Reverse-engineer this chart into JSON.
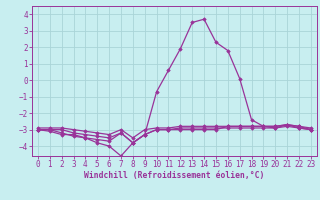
{
  "xlabel": "Windchill (Refroidissement éolien,°C)",
  "background_color": "#c8eef0",
  "grid_color": "#aad4d8",
  "line_color": "#993399",
  "xlim": [
    -0.5,
    23.5
  ],
  "ylim": [
    -4.6,
    4.5
  ],
  "yticks": [
    -4,
    -3,
    -2,
    -1,
    0,
    1,
    2,
    3,
    4
  ],
  "xticks": [
    0,
    1,
    2,
    3,
    4,
    5,
    6,
    7,
    8,
    9,
    10,
    11,
    12,
    13,
    14,
    15,
    16,
    17,
    18,
    19,
    20,
    21,
    22,
    23
  ],
  "series": [
    {
      "x": [
        0,
        1,
        2,
        3,
        4,
        5,
        6,
        7,
        8,
        9,
        10,
        11,
        12,
        13,
        14,
        15,
        16,
        17,
        18,
        19,
        20,
        21,
        22,
        23
      ],
      "y": [
        -3.0,
        -3.1,
        -3.3,
        -3.3,
        -3.5,
        -3.8,
        -4.0,
        -4.6,
        -3.8,
        -3.3,
        -0.7,
        0.6,
        1.9,
        3.5,
        3.7,
        2.3,
        1.8,
        0.1,
        -2.4,
        -2.8,
        -2.9,
        -2.7,
        -2.9,
        -3.0
      ]
    },
    {
      "x": [
        0,
        1,
        2,
        3,
        4,
        5,
        6,
        7,
        8,
        9,
        10,
        11,
        12,
        13,
        14,
        15,
        16,
        17,
        18,
        19,
        20,
        21,
        22,
        23
      ],
      "y": [
        -3.0,
        -3.0,
        -3.2,
        -3.4,
        -3.5,
        -3.6,
        -3.7,
        -3.2,
        -3.8,
        -3.3,
        -3.0,
        -3.0,
        -3.0,
        -3.0,
        -3.0,
        -3.0,
        -2.8,
        -2.8,
        -2.8,
        -2.8,
        -2.8,
        -2.7,
        -2.8,
        -3.0
      ]
    },
    {
      "x": [
        0,
        1,
        2,
        3,
        4,
        5,
        6,
        7,
        8,
        9,
        10,
        11,
        12,
        13,
        14,
        15,
        16,
        17,
        18,
        19,
        20,
        21,
        22,
        23
      ],
      "y": [
        -3.0,
        -3.0,
        -3.0,
        -3.2,
        -3.3,
        -3.4,
        -3.5,
        -3.2,
        -3.8,
        -3.3,
        -3.0,
        -3.0,
        -2.9,
        -2.9,
        -2.9,
        -2.9,
        -2.9,
        -2.9,
        -2.9,
        -2.9,
        -2.9,
        -2.8,
        -2.9,
        -3.0
      ]
    },
    {
      "x": [
        0,
        1,
        2,
        3,
        4,
        5,
        6,
        7,
        8,
        9,
        10,
        11,
        12,
        13,
        14,
        15,
        16,
        17,
        18,
        19,
        20,
        21,
        22,
        23
      ],
      "y": [
        -2.9,
        -2.9,
        -2.9,
        -3.0,
        -3.1,
        -3.2,
        -3.3,
        -3.0,
        -3.5,
        -3.0,
        -2.9,
        -2.9,
        -2.8,
        -2.8,
        -2.8,
        -2.8,
        -2.8,
        -2.8,
        -2.8,
        -2.8,
        -2.8,
        -2.7,
        -2.8,
        -2.9
      ]
    }
  ],
  "tick_fontsize": 5.5,
  "xlabel_fontsize": 5.8,
  "marker": "D",
  "markersize": 1.8,
  "linewidth": 0.9
}
